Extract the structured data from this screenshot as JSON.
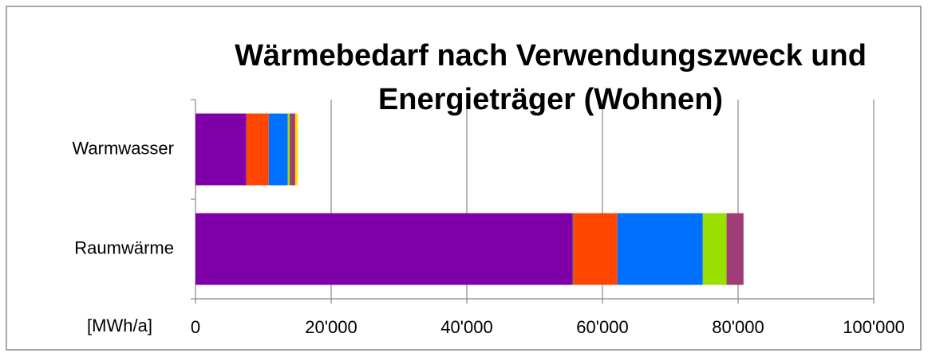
{
  "chart_data": {
    "type": "stacked_barh",
    "title": [
      "Wärmebedarf nach Verwendungszweck und",
      "Energieträger (Wohnen)"
    ],
    "x_label": "[MWh/a]",
    "categories": [
      "Warmwasser",
      "Raumwärme"
    ],
    "series": [
      {
        "color": "#7f00a8",
        "values": [
          7500,
          55600
        ]
      },
      {
        "color": "#996633",
        "values": [
          0,
          200
        ]
      },
      {
        "color": "#ff4500",
        "values": [
          3300,
          6400
        ]
      },
      {
        "color": "#0070ff",
        "values": [
          2800,
          12600
        ]
      },
      {
        "color": "#99e000",
        "values": [
          300,
          3500
        ]
      },
      {
        "color": "#a03c78",
        "values": [
          800,
          2500
        ]
      },
      {
        "color": "#ffe000",
        "values": [
          400,
          0
        ]
      }
    ],
    "xlim": [
      0,
      100000
    ],
    "xticks": [
      0,
      {
        "value": 20000,
        "label": "20'000"
      },
      {
        "value": 40000,
        "label": "40'000"
      },
      {
        "value": 60000,
        "label": "60'000"
      },
      {
        "value": 80000,
        "label": "80'000"
      },
      {
        "value": 100000,
        "label": "100'000"
      }
    ],
    "grid": true
  }
}
